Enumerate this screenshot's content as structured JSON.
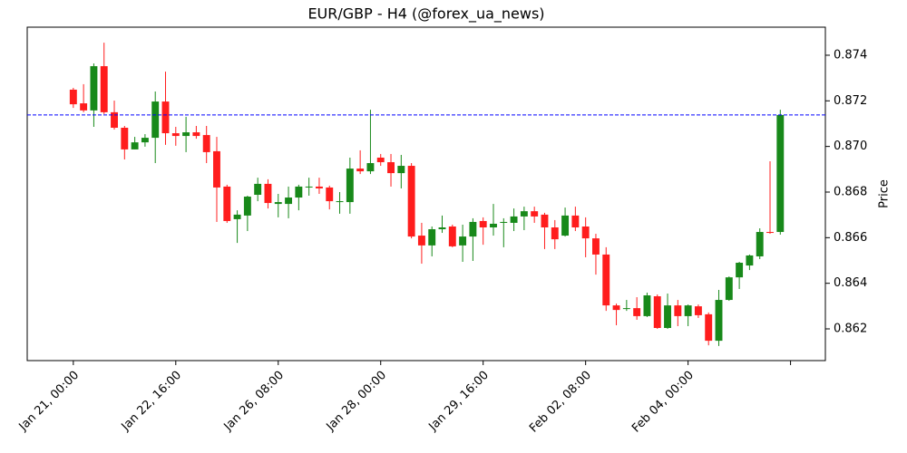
{
  "chart_data": {
    "type": "candlestick",
    "title": "EUR/GBP - H4 (@forex_ua_news)",
    "y_label": "Price",
    "x": [
      0,
      1,
      2,
      3,
      4,
      5,
      6,
      7,
      8,
      9,
      10,
      11,
      12,
      13,
      14,
      15,
      16,
      17,
      18,
      19,
      20,
      21,
      22,
      23,
      24,
      25,
      26,
      27,
      28,
      29,
      30,
      31,
      32,
      33,
      34,
      35,
      36,
      37,
      38,
      39,
      40,
      41,
      42,
      43,
      44,
      45,
      46,
      47,
      48,
      49,
      50,
      51,
      52,
      53,
      54,
      55,
      56,
      57,
      58,
      59,
      60,
      61,
      62,
      63,
      64,
      65,
      66,
      67,
      68,
      69
    ],
    "open": [
      0.87249,
      0.87189,
      0.87158,
      0.87352,
      0.8715,
      0.87082,
      0.86987,
      0.87018,
      0.87038,
      0.87197,
      0.87058,
      0.87046,
      0.87062,
      0.8705,
      0.86979,
      0.86824,
      0.86681,
      0.86697,
      0.86788,
      0.86836,
      0.86748,
      0.86748,
      0.86776,
      0.8682,
      0.86824,
      0.8682,
      0.86756,
      0.86756,
      0.86903,
      0.86891,
      0.86951,
      0.86931,
      0.86883,
      0.86915,
      0.86609,
      0.86566,
      0.86637,
      0.86649,
      0.86566,
      0.86605,
      0.86673,
      0.86645,
      0.86665,
      0.86665,
      0.86693,
      0.86716,
      0.86701,
      0.86645,
      0.86609,
      0.86697,
      0.86649,
      0.86597,
      0.86526,
      0.86303,
      0.86287,
      0.86291,
      0.86256,
      0.86343,
      0.86204,
      0.86303,
      0.86256,
      0.86299,
      0.86264,
      0.86148,
      0.86327,
      0.86426,
      0.86478,
      0.86518,
      0.86625,
      0.86625
    ],
    "high": [
      0.87257,
      0.87273,
      0.87364,
      0.87455,
      0.87201,
      0.8709,
      0.87042,
      0.87054,
      0.87241,
      0.87328,
      0.87086,
      0.8713,
      0.8709,
      0.8709,
      0.87042,
      0.86832,
      0.8672,
      0.86784,
      0.86863,
      0.86856,
      0.86792,
      0.86824,
      0.86832,
      0.86863,
      0.86863,
      0.86828,
      0.868,
      0.86951,
      0.86983,
      0.87161,
      0.86967,
      0.86967,
      0.86963,
      0.86927,
      0.86665,
      0.86649,
      0.86697,
      0.86657,
      0.86657,
      0.86685,
      0.86689,
      0.86748,
      0.86685,
      0.86728,
      0.86736,
      0.86736,
      0.86709,
      0.86677,
      0.86732,
      0.86736,
      0.86689,
      0.86617,
      0.86558,
      0.86311,
      0.86327,
      0.86339,
      0.86359,
      0.86351,
      0.86355,
      0.86327,
      0.86307,
      0.86307,
      0.86272,
      0.86371,
      0.8643,
      0.86494,
      0.86526,
      0.86641,
      0.86935,
      0.87161
    ],
    "low": [
      0.87169,
      0.8715,
      0.87086,
      0.87142,
      0.87074,
      0.86943,
      0.86987,
      0.86999,
      0.86927,
      0.87007,
      0.87003,
      0.86975,
      0.87034,
      0.86927,
      0.86669,
      0.86665,
      0.86577,
      0.86629,
      0.8676,
      0.86728,
      0.86689,
      0.86685,
      0.8672,
      0.86784,
      0.86792,
      0.86724,
      0.86705,
      0.86705,
      0.86879,
      0.86879,
      0.86915,
      0.86824,
      0.86816,
      0.86597,
      0.86486,
      0.86518,
      0.86621,
      0.86558,
      0.86494,
      0.86498,
      0.86569,
      0.86609,
      0.86558,
      0.86629,
      0.86633,
      0.86665,
      0.8655,
      0.8655,
      0.86605,
      0.86629,
      0.86514,
      0.86438,
      0.86279,
      0.86216,
      0.86279,
      0.8624,
      0.86252,
      0.862,
      0.862,
      0.86212,
      0.86212,
      0.86248,
      0.86128,
      0.86125,
      0.86323,
      0.86375,
      0.86458,
      0.86506,
      0.86617,
      0.86613
    ],
    "close": [
      0.87185,
      0.87158,
      0.87352,
      0.8715,
      0.87082,
      0.86987,
      0.87018,
      0.87038,
      0.87197,
      0.87058,
      0.87046,
      0.87062,
      0.87046,
      0.86975,
      0.8682,
      0.86673,
      0.86701,
      0.8678,
      0.86836,
      0.86752,
      0.86756,
      0.86776,
      0.86824,
      0.86824,
      0.86816,
      0.8676,
      0.8676,
      0.86903,
      0.86891,
      0.86927,
      0.86931,
      0.86883,
      0.86915,
      0.86605,
      0.86566,
      0.86637,
      0.86645,
      0.86562,
      0.86605,
      0.86669,
      0.86645,
      0.86661,
      0.86669,
      0.86693,
      0.86716,
      0.86693,
      0.86645,
      0.86593,
      0.86697,
      0.86645,
      0.86597,
      0.86526,
      0.86303,
      0.86283,
      0.86291,
      0.86256,
      0.86347,
      0.86204,
      0.86303,
      0.86256,
      0.86303,
      0.8626,
      0.86148,
      0.86327,
      0.86426,
      0.8649,
      0.86522,
      0.86625,
      0.86621,
      0.87138
    ],
    "up_color": "#18891a",
    "down_color": "#ff1d1d",
    "hline": {
      "value": 0.87138,
      "color": "#0000ff"
    },
    "xlim": [
      -4.5,
      73.4
    ],
    "xticks": [
      {
        "value": 0,
        "label": "Jan 21, 00:00"
      },
      {
        "value": 10,
        "label": "Jan 22, 16:00"
      },
      {
        "value": 20,
        "label": "Jan 26, 08:00"
      },
      {
        "value": 30,
        "label": "Jan 28, 00:00"
      },
      {
        "value": 40,
        "label": "Jan 29, 16:00"
      },
      {
        "value": 50,
        "label": "Feb 02, 08:00"
      },
      {
        "value": 60,
        "label": "Feb 04, 00:00"
      },
      {
        "value": 70
      }
    ],
    "ylim": [
      0.86061,
      0.87523
    ],
    "yticks": [
      0.862,
      0.864,
      0.866,
      0.868,
      {
        "value": 0.87,
        "label": "0.870"
      },
      0.872,
      0.874
    ]
  }
}
